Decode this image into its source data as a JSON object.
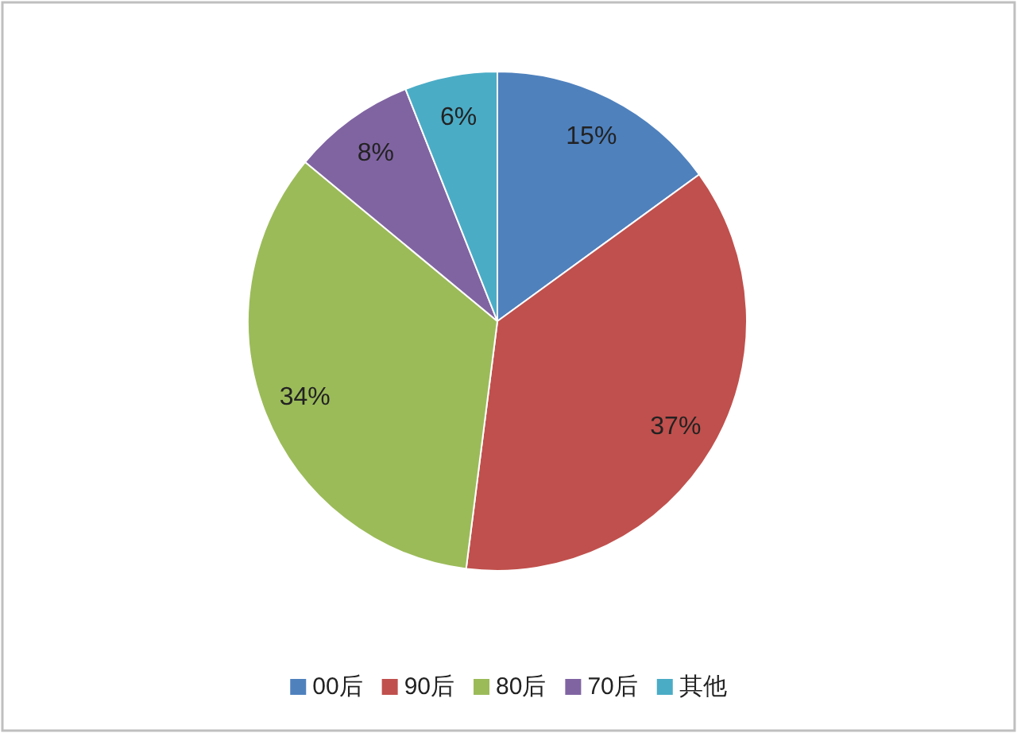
{
  "chart_data": {
    "type": "pie",
    "categories": [
      "00后",
      "90后",
      "80后",
      "70后",
      "其他"
    ],
    "values": [
      15,
      37,
      34,
      8,
      6
    ],
    "value_labels": [
      "15%",
      "37%",
      "34%",
      "8%",
      "6%"
    ],
    "colors": [
      "#4f81bd",
      "#c0504d",
      "#9bbb59",
      "#8064a2",
      "#4bacc6"
    ],
    "legend": "bottom"
  }
}
